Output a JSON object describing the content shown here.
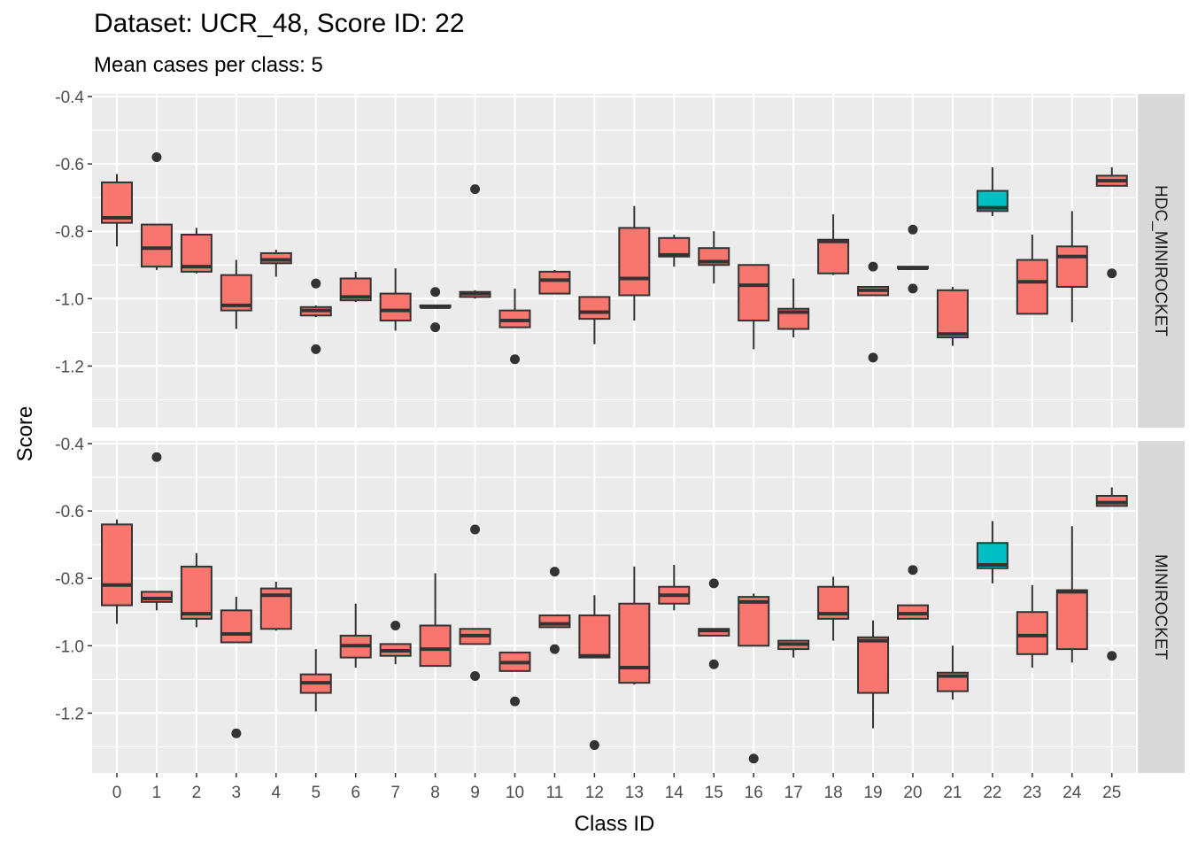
{
  "chart_data": {
    "type": "boxplot",
    "title": "Dataset: UCR_48, Score ID: 22",
    "subtitle": "Mean cases per class: 5",
    "xlabel": "Class ID",
    "ylabel": "Score",
    "categories": [
      "0",
      "1",
      "2",
      "3",
      "4",
      "5",
      "6",
      "7",
      "8",
      "9",
      "10",
      "11",
      "12",
      "13",
      "14",
      "15",
      "16",
      "17",
      "18",
      "19",
      "20",
      "21",
      "22",
      "23",
      "24",
      "25"
    ],
    "highlight_category": "22",
    "colors": {
      "default_fill": "#F8766D",
      "highlight_fill": "#00BFC4",
      "panel_bg": "#EBEBEB",
      "strip_bg": "#D9D9D9",
      "grid": "#FFFFFF",
      "box_line": "#333333"
    },
    "ylim": [
      -1.35,
      -0.4
    ],
    "yticks": [
      "-0.4",
      "-0.6",
      "-0.8",
      "-1.0",
      "-1.2"
    ],
    "grid": true,
    "panels": [
      {
        "strip_label": "HDC_MINIROCKET",
        "boxes": [
          {
            "category": "0",
            "lower_whisker": -0.845,
            "q1": -0.775,
            "median": -0.76,
            "q3": -0.655,
            "upper_whisker": -0.63,
            "outliers": []
          },
          {
            "category": "1",
            "lower_whisker": -0.915,
            "q1": -0.905,
            "median": -0.85,
            "q3": -0.78,
            "upper_whisker": -0.78,
            "outliers": [
              -0.58
            ]
          },
          {
            "category": "2",
            "lower_whisker": -0.925,
            "q1": -0.92,
            "median": -0.905,
            "q3": -0.81,
            "upper_whisker": -0.79,
            "outliers": []
          },
          {
            "category": "3",
            "lower_whisker": -1.09,
            "q1": -1.035,
            "median": -1.02,
            "q3": -0.93,
            "upper_whisker": -0.885,
            "outliers": []
          },
          {
            "category": "4",
            "lower_whisker": -0.935,
            "q1": -0.895,
            "median": -0.885,
            "q3": -0.865,
            "upper_whisker": -0.855,
            "outliers": []
          },
          {
            "category": "5",
            "lower_whisker": -1.055,
            "q1": -1.05,
            "median": -1.035,
            "q3": -1.025,
            "upper_whisker": -1.02,
            "outliers": [
              -0.955,
              -1.15
            ]
          },
          {
            "category": "6",
            "lower_whisker": -1.01,
            "q1": -1.005,
            "median": -0.995,
            "q3": -0.94,
            "upper_whisker": -0.92,
            "outliers": []
          },
          {
            "category": "7",
            "lower_whisker": -1.095,
            "q1": -1.065,
            "median": -1.035,
            "q3": -0.985,
            "upper_whisker": -0.91,
            "outliers": []
          },
          {
            "category": "8",
            "lower_whisker": -1.025,
            "q1": -1.025,
            "median": -1.025,
            "q3": -1.02,
            "upper_whisker": -1.02,
            "outliers": [
              -0.98,
              -1.085
            ]
          },
          {
            "category": "9",
            "lower_whisker": -1.0,
            "q1": -0.995,
            "median": -0.985,
            "q3": -0.98,
            "upper_whisker": -0.975,
            "outliers": [
              -0.675
            ]
          },
          {
            "category": "10",
            "lower_whisker": -1.085,
            "q1": -1.085,
            "median": -1.065,
            "q3": -1.035,
            "upper_whisker": -0.97,
            "outliers": [
              -1.18
            ]
          },
          {
            "category": "11",
            "lower_whisker": -0.985,
            "q1": -0.985,
            "median": -0.945,
            "q3": -0.92,
            "upper_whisker": -0.915,
            "outliers": []
          },
          {
            "category": "12",
            "lower_whisker": -1.135,
            "q1": -1.06,
            "median": -1.04,
            "q3": -0.995,
            "upper_whisker": -0.995,
            "outliers": []
          },
          {
            "category": "13",
            "lower_whisker": -1.065,
            "q1": -0.99,
            "median": -0.94,
            "q3": -0.79,
            "upper_whisker": -0.725,
            "outliers": []
          },
          {
            "category": "14",
            "lower_whisker": -0.905,
            "q1": -0.875,
            "median": -0.87,
            "q3": -0.82,
            "upper_whisker": -0.81,
            "outliers": []
          },
          {
            "category": "15",
            "lower_whisker": -0.955,
            "q1": -0.9,
            "median": -0.89,
            "q3": -0.85,
            "upper_whisker": -0.8,
            "outliers": []
          },
          {
            "category": "16",
            "lower_whisker": -1.15,
            "q1": -1.065,
            "median": -0.96,
            "q3": -0.9,
            "upper_whisker": -0.9,
            "outliers": []
          },
          {
            "category": "17",
            "lower_whisker": -1.115,
            "q1": -1.09,
            "median": -1.04,
            "q3": -1.03,
            "upper_whisker": -0.94,
            "outliers": []
          },
          {
            "category": "18",
            "lower_whisker": -0.93,
            "q1": -0.925,
            "median": -0.83,
            "q3": -0.825,
            "upper_whisker": -0.75,
            "outliers": []
          },
          {
            "category": "19",
            "lower_whisker": -0.99,
            "q1": -0.99,
            "median": -0.975,
            "q3": -0.965,
            "upper_whisker": -0.965,
            "outliers": [
              -0.905,
              -1.175
            ]
          },
          {
            "category": "20",
            "lower_whisker": -0.91,
            "q1": -0.91,
            "median": -0.91,
            "q3": -0.905,
            "upper_whisker": -0.905,
            "outliers": [
              -0.795,
              -0.97
            ]
          },
          {
            "category": "21",
            "lower_whisker": -1.14,
            "q1": -1.115,
            "median": -1.105,
            "q3": -0.975,
            "upper_whisker": -0.965,
            "outliers": []
          },
          {
            "category": "22",
            "lower_whisker": -0.755,
            "q1": -0.74,
            "median": -0.73,
            "q3": -0.68,
            "upper_whisker": -0.61,
            "outliers": []
          },
          {
            "category": "23",
            "lower_whisker": -1.045,
            "q1": -1.045,
            "median": -0.95,
            "q3": -0.885,
            "upper_whisker": -0.81,
            "outliers": []
          },
          {
            "category": "24",
            "lower_whisker": -1.07,
            "q1": -0.965,
            "median": -0.875,
            "q3": -0.845,
            "upper_whisker": -0.74,
            "outliers": []
          },
          {
            "category": "25",
            "lower_whisker": -0.665,
            "q1": -0.665,
            "median": -0.65,
            "q3": -0.635,
            "upper_whisker": -0.61,
            "outliers": [
              -0.925
            ]
          }
        ]
      },
      {
        "strip_label": "MINIROCKET",
        "boxes": [
          {
            "category": "0",
            "lower_whisker": -0.935,
            "q1": -0.88,
            "median": -0.82,
            "q3": -0.64,
            "upper_whisker": -0.625,
            "outliers": []
          },
          {
            "category": "1",
            "lower_whisker": -0.895,
            "q1": -0.87,
            "median": -0.86,
            "q3": -0.84,
            "upper_whisker": -0.84,
            "outliers": [
              -0.44
            ]
          },
          {
            "category": "2",
            "lower_whisker": -0.945,
            "q1": -0.92,
            "median": -0.905,
            "q3": -0.765,
            "upper_whisker": -0.725,
            "outliers": []
          },
          {
            "category": "3",
            "lower_whisker": -0.99,
            "q1": -0.99,
            "median": -0.965,
            "q3": -0.895,
            "upper_whisker": -0.855,
            "outliers": [
              -1.26
            ]
          },
          {
            "category": "4",
            "lower_whisker": -0.955,
            "q1": -0.95,
            "median": -0.85,
            "q3": -0.83,
            "upper_whisker": -0.81,
            "outliers": []
          },
          {
            "category": "5",
            "lower_whisker": -1.195,
            "q1": -1.14,
            "median": -1.11,
            "q3": -1.085,
            "upper_whisker": -1.01,
            "outliers": []
          },
          {
            "category": "6",
            "lower_whisker": -1.065,
            "q1": -1.035,
            "median": -1.0,
            "q3": -0.97,
            "upper_whisker": -0.875,
            "outliers": []
          },
          {
            "category": "7",
            "lower_whisker": -1.055,
            "q1": -1.03,
            "median": -1.015,
            "q3": -0.995,
            "upper_whisker": -0.995,
            "outliers": [
              -0.94
            ]
          },
          {
            "category": "8",
            "lower_whisker": -1.06,
            "q1": -1.06,
            "median": -1.01,
            "q3": -0.94,
            "upper_whisker": -0.785,
            "outliers": []
          },
          {
            "category": "9",
            "lower_whisker": -0.995,
            "q1": -0.995,
            "median": -0.97,
            "q3": -0.95,
            "upper_whisker": -0.95,
            "outliers": [
              -0.655,
              -1.09
            ]
          },
          {
            "category": "10",
            "lower_whisker": -1.075,
            "q1": -1.075,
            "median": -1.05,
            "q3": -1.02,
            "upper_whisker": -1.02,
            "outliers": [
              -1.165
            ]
          },
          {
            "category": "11",
            "lower_whisker": -0.945,
            "q1": -0.945,
            "median": -0.935,
            "q3": -0.91,
            "upper_whisker": -0.91,
            "outliers": [
              -0.78,
              -1.01
            ]
          },
          {
            "category": "12",
            "lower_whisker": -1.035,
            "q1": -1.035,
            "median": -1.03,
            "q3": -0.91,
            "upper_whisker": -0.85,
            "outliers": [
              -1.295
            ]
          },
          {
            "category": "13",
            "lower_whisker": -1.115,
            "q1": -1.11,
            "median": -1.065,
            "q3": -0.875,
            "upper_whisker": -0.765,
            "outliers": []
          },
          {
            "category": "14",
            "lower_whisker": -0.895,
            "q1": -0.875,
            "median": -0.85,
            "q3": -0.825,
            "upper_whisker": -0.76,
            "outliers": []
          },
          {
            "category": "15",
            "lower_whisker": -0.97,
            "q1": -0.97,
            "median": -0.955,
            "q3": -0.95,
            "upper_whisker": -0.95,
            "outliers": [
              -0.815,
              -1.055
            ]
          },
          {
            "category": "16",
            "lower_whisker": -1.0,
            "q1": -1.0,
            "median": -0.87,
            "q3": -0.855,
            "upper_whisker": -0.845,
            "outliers": [
              -1.335
            ]
          },
          {
            "category": "17",
            "lower_whisker": -1.035,
            "q1": -1.01,
            "median": -0.995,
            "q3": -0.985,
            "upper_whisker": -0.985,
            "outliers": []
          },
          {
            "category": "18",
            "lower_whisker": -0.985,
            "q1": -0.92,
            "median": -0.905,
            "q3": -0.825,
            "upper_whisker": -0.795,
            "outliers": []
          },
          {
            "category": "19",
            "lower_whisker": -1.245,
            "q1": -1.14,
            "median": -0.985,
            "q3": -0.975,
            "upper_whisker": -0.925,
            "outliers": []
          },
          {
            "category": "20",
            "lower_whisker": -0.92,
            "q1": -0.92,
            "median": -0.905,
            "q3": -0.88,
            "upper_whisker": -0.88,
            "outliers": [
              -0.775
            ]
          },
          {
            "category": "21",
            "lower_whisker": -1.16,
            "q1": -1.135,
            "median": -1.09,
            "q3": -1.08,
            "upper_whisker": -1.0,
            "outliers": []
          },
          {
            "category": "22",
            "lower_whisker": -0.815,
            "q1": -0.77,
            "median": -0.76,
            "q3": -0.695,
            "upper_whisker": -0.63,
            "outliers": []
          },
          {
            "category": "23",
            "lower_whisker": -1.065,
            "q1": -1.025,
            "median": -0.97,
            "q3": -0.9,
            "upper_whisker": -0.82,
            "outliers": []
          },
          {
            "category": "24",
            "lower_whisker": -1.05,
            "q1": -1.01,
            "median": -0.84,
            "q3": -0.835,
            "upper_whisker": -0.645,
            "outliers": []
          },
          {
            "category": "25",
            "lower_whisker": -0.585,
            "q1": -0.585,
            "median": -0.575,
            "q3": -0.555,
            "upper_whisker": -0.53,
            "outliers": [
              -1.03
            ]
          }
        ]
      }
    ]
  }
}
